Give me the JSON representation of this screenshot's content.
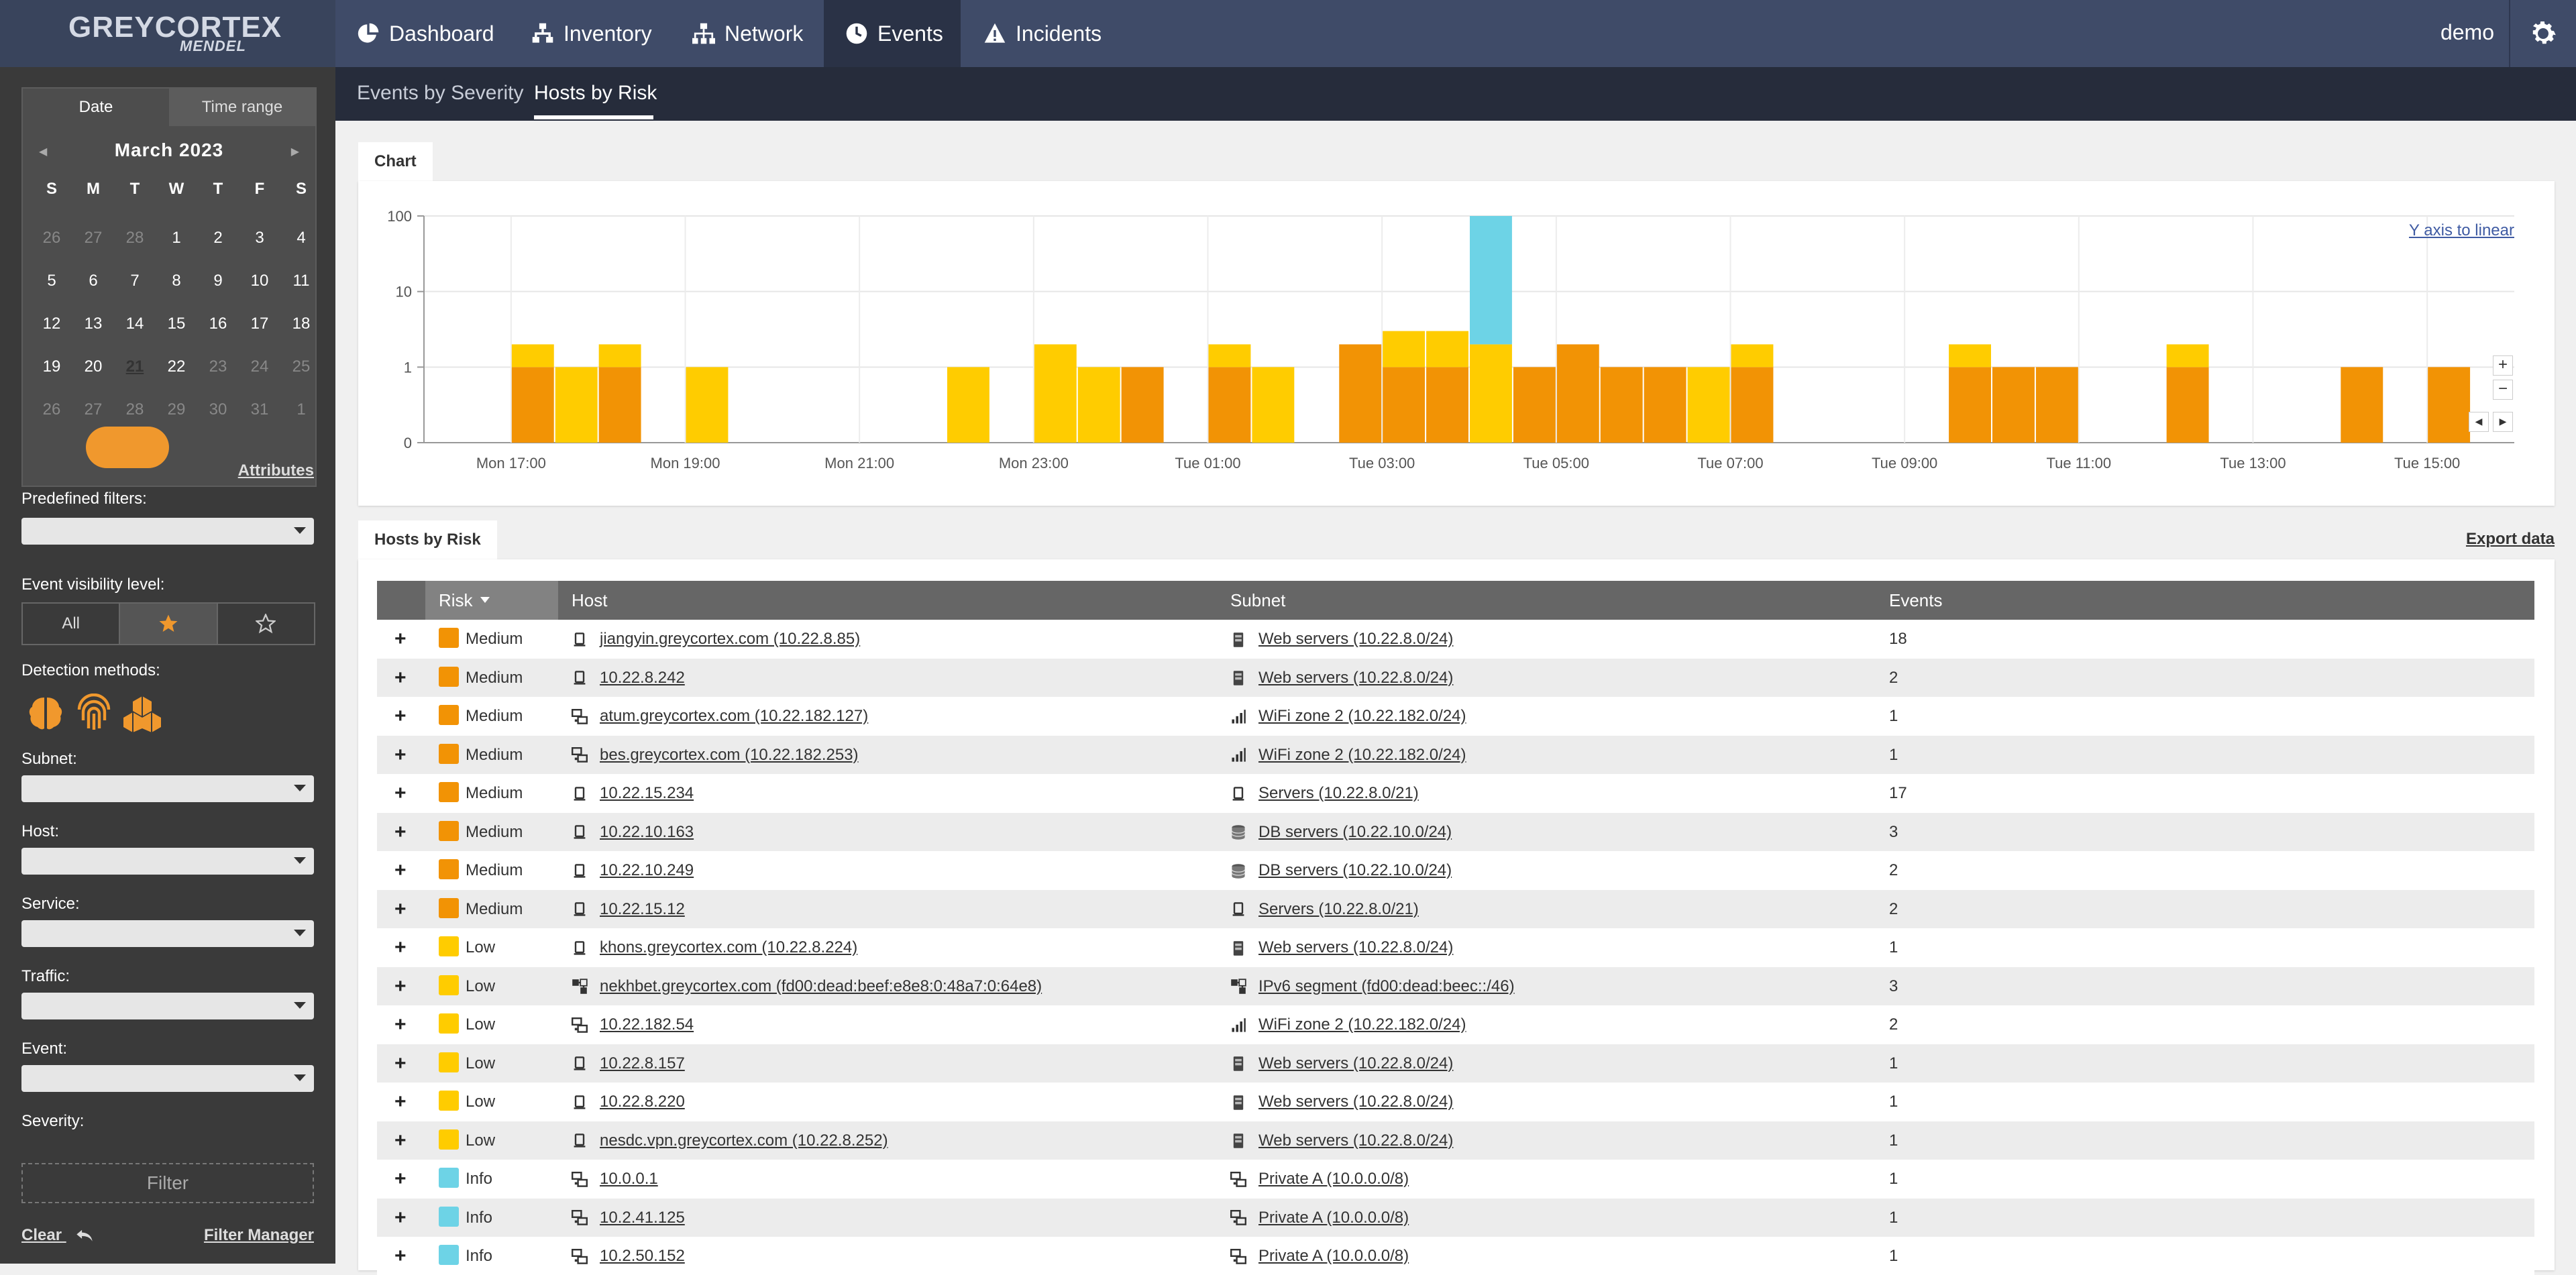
{
  "app": {
    "logo_main": "GREYCORTEX",
    "logo_sub": "MENDEL",
    "user": "demo"
  },
  "nav": [
    {
      "label": "Dashboard",
      "icon": "pie-chart-icon"
    },
    {
      "label": "Inventory",
      "icon": "sitemap-icon"
    },
    {
      "label": "Network",
      "icon": "network-icon"
    },
    {
      "label": "Events",
      "icon": "clock-icon",
      "active": true
    },
    {
      "label": "Incidents",
      "icon": "warning-icon"
    }
  ],
  "subnav": {
    "tab1": "Events by Severity",
    "tab2": "Hosts by Risk"
  },
  "calendar": {
    "tab_date": "Date",
    "tab_range": "Time range",
    "month": "March 2023",
    "dow": [
      "S",
      "M",
      "T",
      "W",
      "T",
      "F",
      "S"
    ],
    "weeks": [
      [
        "26",
        "27",
        "28",
        "1",
        "2",
        "3",
        "4"
      ],
      [
        "5",
        "6",
        "7",
        "8",
        "9",
        "10",
        "11"
      ],
      [
        "12",
        "13",
        "14",
        "15",
        "16",
        "17",
        "18"
      ],
      [
        "19",
        "20",
        "21",
        "22",
        "23",
        "24",
        "25"
      ],
      [
        "26",
        "27",
        "28",
        "29",
        "30",
        "31",
        "1"
      ]
    ]
  },
  "sidebar": {
    "attributes": "Attributes",
    "predefined_filters": "Predefined filters:",
    "visibility_label": "Event visibility level:",
    "visibility_all": "All",
    "detection_label": "Detection methods:",
    "subnet": "Subnet:",
    "host": "Host:",
    "service": "Service:",
    "traffic": "Traffic:",
    "event": "Event:",
    "severity": "Severity:",
    "filter_btn": "Filter",
    "clear": "Clear",
    "filter_manager": "Filter Manager"
  },
  "chart_panel": {
    "tab": "Chart",
    "y_axis_link": "Y axis to linear",
    "zoom_in": "+",
    "zoom_out": "−"
  },
  "chart_data": {
    "type": "bar",
    "stacked": true,
    "y_scale": "log",
    "yticks": [
      "100",
      "10",
      "1",
      "0"
    ],
    "xticks": [
      "Mon 17:00",
      "Mon 19:00",
      "Mon 21:00",
      "Mon 23:00",
      "Tue 01:00",
      "Tue 03:00",
      "Tue 05:00",
      "Tue 07:00",
      "Tue 09:00",
      "Tue 11:00",
      "Tue 13:00",
      "Tue 15:00"
    ],
    "colors": {
      "Medium": "#f29305",
      "Low": "#ffcc00",
      "Info": "#6dd3e6"
    },
    "bins": [
      {
        "x": "Mon 17:00",
        "Medium": 1,
        "Low": 1
      },
      {
        "x": "Mon 17:30",
        "Low": 1
      },
      {
        "x": "Mon 18:00",
        "Medium": 1,
        "Low": 1
      },
      {
        "x": "Mon 19:00",
        "Low": 1
      },
      {
        "x": "Mon 22:00",
        "Low": 1
      },
      {
        "x": "Mon 23:00",
        "Low": 2
      },
      {
        "x": "Mon 23:30",
        "Low": 1
      },
      {
        "x": "Tue 00:00",
        "Medium": 1
      },
      {
        "x": "Tue 01:00",
        "Medium": 1,
        "Low": 1
      },
      {
        "x": "Tue 01:30",
        "Low": 1
      },
      {
        "x": "Tue 02:30",
        "Medium": 2
      },
      {
        "x": "Tue 03:00",
        "Medium": 1,
        "Low": 2
      },
      {
        "x": "Tue 03:30",
        "Medium": 1,
        "Low": 2
      },
      {
        "x": "Tue 04:00",
        "Low": 2,
        "Info": 98
      },
      {
        "x": "Tue 04:30",
        "Medium": 1
      },
      {
        "x": "Tue 05:00",
        "Medium": 2
      },
      {
        "x": "Tue 05:30",
        "Medium": 1
      },
      {
        "x": "Tue 06:00",
        "Medium": 1
      },
      {
        "x": "Tue 06:30",
        "Low": 1
      },
      {
        "x": "Tue 07:00",
        "Medium": 1,
        "Low": 1
      },
      {
        "x": "Tue 09:30",
        "Medium": 1,
        "Low": 1
      },
      {
        "x": "Tue 10:00",
        "Medium": 1
      },
      {
        "x": "Tue 10:30",
        "Medium": 1
      },
      {
        "x": "Tue 12:00",
        "Medium": 1,
        "Low": 1
      },
      {
        "x": "Tue 14:00",
        "Medium": 1
      },
      {
        "x": "Tue 15:00",
        "Medium": 1
      }
    ]
  },
  "table_panel": {
    "tab": "Hosts by Risk",
    "export": "Export data"
  },
  "table": {
    "columns": [
      "Risk",
      "Host",
      "Subnet",
      "Events"
    ],
    "rows": [
      {
        "risk": "Medium",
        "host": "jiangyin.greycortex.com (10.22.8.85)",
        "host_icon": "server-icon",
        "subnet": "Web servers (10.22.8.0/24)",
        "subnet_icon": "web-server-icon",
        "events": "18"
      },
      {
        "risk": "Medium",
        "host": "10.22.8.242",
        "host_icon": "server-icon",
        "subnet": "Web servers (10.22.8.0/24)",
        "subnet_icon": "web-server-icon",
        "events": "2"
      },
      {
        "risk": "Medium",
        "host": "atum.greycortex.com (10.22.182.127)",
        "host_icon": "workstation-icon",
        "subnet": "WiFi zone 2 (10.22.182.0/24)",
        "subnet_icon": "wifi-signal-icon",
        "events": "1"
      },
      {
        "risk": "Medium",
        "host": "bes.greycortex.com (10.22.182.253)",
        "host_icon": "workstation-icon",
        "subnet": "WiFi zone 2 (10.22.182.0/24)",
        "subnet_icon": "wifi-signal-icon",
        "events": "1"
      },
      {
        "risk": "Medium",
        "host": "10.22.15.234",
        "host_icon": "server-icon",
        "subnet": "Servers (10.22.8.0/21)",
        "subnet_icon": "server-icon",
        "events": "17"
      },
      {
        "risk": "Medium",
        "host": "10.22.10.163",
        "host_icon": "server-icon",
        "subnet": "DB servers (10.22.10.0/24)",
        "subnet_icon": "database-icon",
        "events": "3"
      },
      {
        "risk": "Medium",
        "host": "10.22.10.249",
        "host_icon": "server-icon",
        "subnet": "DB servers (10.22.10.0/24)",
        "subnet_icon": "database-icon",
        "events": "2"
      },
      {
        "risk": "Medium",
        "host": "10.22.15.12",
        "host_icon": "server-icon",
        "subnet": "Servers (10.22.8.0/21)",
        "subnet_icon": "server-icon",
        "events": "2"
      },
      {
        "risk": "Low",
        "host": "khons.greycortex.com (10.22.8.224)",
        "host_icon": "server-icon",
        "subnet": "Web servers (10.22.8.0/24)",
        "subnet_icon": "web-server-icon",
        "events": "1"
      },
      {
        "risk": "Low",
        "host": "nekhbet.greycortex.com (fd00:dead:beef:e8e8:0:48a7:0:64e8)",
        "host_icon": "ipv6-icon",
        "subnet": "IPv6 segment (fd00:dead:beec::/46)",
        "subnet_icon": "ipv6-icon",
        "events": "3"
      },
      {
        "risk": "Low",
        "host": "10.22.182.54",
        "host_icon": "workstation-icon",
        "subnet": "WiFi zone 2 (10.22.182.0/24)",
        "subnet_icon": "wifi-signal-icon",
        "events": "2"
      },
      {
        "risk": "Low",
        "host": "10.22.8.157",
        "host_icon": "server-icon",
        "subnet": "Web servers (10.22.8.0/24)",
        "subnet_icon": "web-server-icon",
        "events": "1"
      },
      {
        "risk": "Low",
        "host": "10.22.8.220",
        "host_icon": "server-icon",
        "subnet": "Web servers (10.22.8.0/24)",
        "subnet_icon": "web-server-icon",
        "events": "1"
      },
      {
        "risk": "Low",
        "host": "nesdc.vpn.greycortex.com (10.22.8.252)",
        "host_icon": "server-icon",
        "subnet": "Web servers (10.22.8.0/24)",
        "subnet_icon": "web-server-icon",
        "events": "1"
      },
      {
        "risk": "Info",
        "host": "10.0.0.1",
        "host_icon": "workstation-icon",
        "subnet": "Private A (10.0.0.0/8)",
        "subnet_icon": "workstation-icon",
        "events": "1"
      },
      {
        "risk": "Info",
        "host": "10.2.41.125",
        "host_icon": "workstation-icon",
        "subnet": "Private A (10.0.0.0/8)",
        "subnet_icon": "workstation-icon",
        "events": "1"
      },
      {
        "risk": "Info",
        "host": "10.2.50.152",
        "host_icon": "workstation-icon",
        "subnet": "Private A (10.0.0.0/8)",
        "subnet_icon": "workstation-icon",
        "events": "1"
      }
    ]
  }
}
